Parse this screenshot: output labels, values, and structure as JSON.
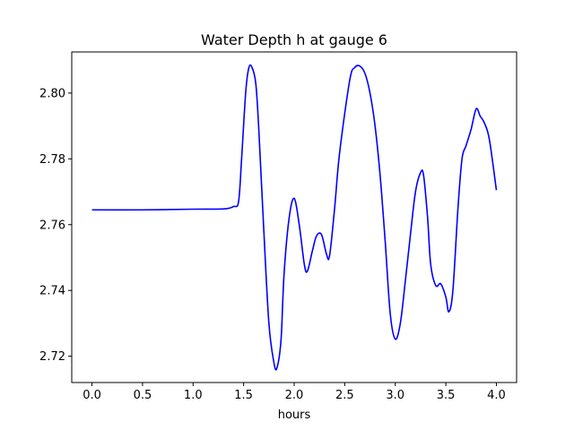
{
  "chart_data": {
    "type": "line",
    "title": "Water Depth h at gauge 6",
    "xlabel": "hours",
    "ylabel": "",
    "xlim": [
      -0.2,
      4.2
    ],
    "ylim": [
      2.712,
      2.8125
    ],
    "xticks": [
      0.0,
      0.5,
      1.0,
      1.5,
      2.0,
      2.5,
      3.0,
      3.5,
      4.0
    ],
    "xtick_labels": [
      "0.0",
      "0.5",
      "1.0",
      "1.5",
      "2.0",
      "2.5",
      "3.0",
      "3.5",
      "4.0"
    ],
    "yticks": [
      2.72,
      2.74,
      2.76,
      2.78,
      2.8
    ],
    "ytick_labels": [
      "2.72",
      "2.74",
      "2.76",
      "2.78",
      "2.80"
    ],
    "grid": false,
    "series": [
      {
        "color": "#0000ff",
        "x": [
          0.0,
          0.5,
          1.0,
          1.3,
          1.4,
          1.45,
          1.48,
          1.52,
          1.55,
          1.58,
          1.62,
          1.65,
          1.7,
          1.75,
          1.8,
          1.83,
          1.87,
          1.9,
          1.95,
          2.0,
          2.05,
          2.1,
          2.13,
          2.18,
          2.22,
          2.27,
          2.32,
          2.35,
          2.4,
          2.45,
          2.55,
          2.6,
          2.65,
          2.7,
          2.75,
          2.8,
          2.85,
          2.9,
          2.95,
          3.0,
          3.05,
          3.1,
          3.15,
          3.2,
          3.25,
          3.28,
          3.32,
          3.35,
          3.4,
          3.45,
          3.5,
          3.53,
          3.57,
          3.62,
          3.66,
          3.7,
          3.75,
          3.8,
          3.84,
          3.88,
          3.93,
          4.0
        ],
        "y": [
          2.7645,
          2.7645,
          2.7647,
          2.7648,
          2.7655,
          2.767,
          2.78,
          2.8,
          2.8075,
          2.808,
          2.803,
          2.789,
          2.758,
          2.73,
          2.718,
          2.7165,
          2.725,
          2.745,
          2.762,
          2.768,
          2.76,
          2.748,
          2.7458,
          2.752,
          2.7565,
          2.757,
          2.751,
          2.7505,
          2.765,
          2.782,
          2.804,
          2.8078,
          2.8082,
          2.806,
          2.8,
          2.79,
          2.775,
          2.755,
          2.733,
          2.7252,
          2.73,
          2.743,
          2.757,
          2.77,
          2.7758,
          2.775,
          2.762,
          2.748,
          2.7415,
          2.742,
          2.738,
          2.7335,
          2.74,
          2.765,
          2.78,
          2.784,
          2.789,
          2.7952,
          2.793,
          2.791,
          2.786,
          2.7705
        ]
      }
    ]
  }
}
